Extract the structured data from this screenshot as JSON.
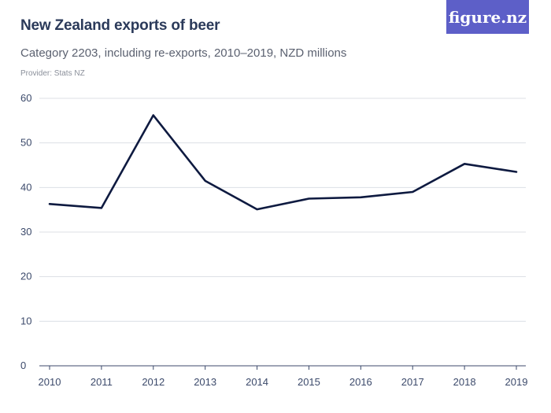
{
  "header": {
    "title": "New Zealand exports of beer",
    "subtitle": "Category 2203, including re-exports, 2010–2019, NZD millions",
    "provider": "Provider: Stats NZ"
  },
  "logo": {
    "text": "figure.nz",
    "background": "#5d5fc8"
  },
  "colors": {
    "line": "#0e1a40",
    "grid": "#dcdfe5",
    "axis": "#3c4a6b"
  },
  "chart_data": {
    "type": "line",
    "title": "New Zealand exports of beer",
    "subtitle": "Category 2203, including re-exports, 2010–2019, NZD millions",
    "x": [
      "2010",
      "2011",
      "2012",
      "2013",
      "2014",
      "2015",
      "2016",
      "2017",
      "2018",
      "2019"
    ],
    "series": [
      {
        "values": [
          36.3,
          35.4,
          56.2,
          41.5,
          35.1,
          37.5,
          37.8,
          39.0,
          45.3,
          43.5
        ]
      }
    ],
    "ylim": [
      0,
      60
    ],
    "yticks": [
      0,
      10,
      20,
      30,
      40,
      50,
      60
    ],
    "grid": true
  }
}
